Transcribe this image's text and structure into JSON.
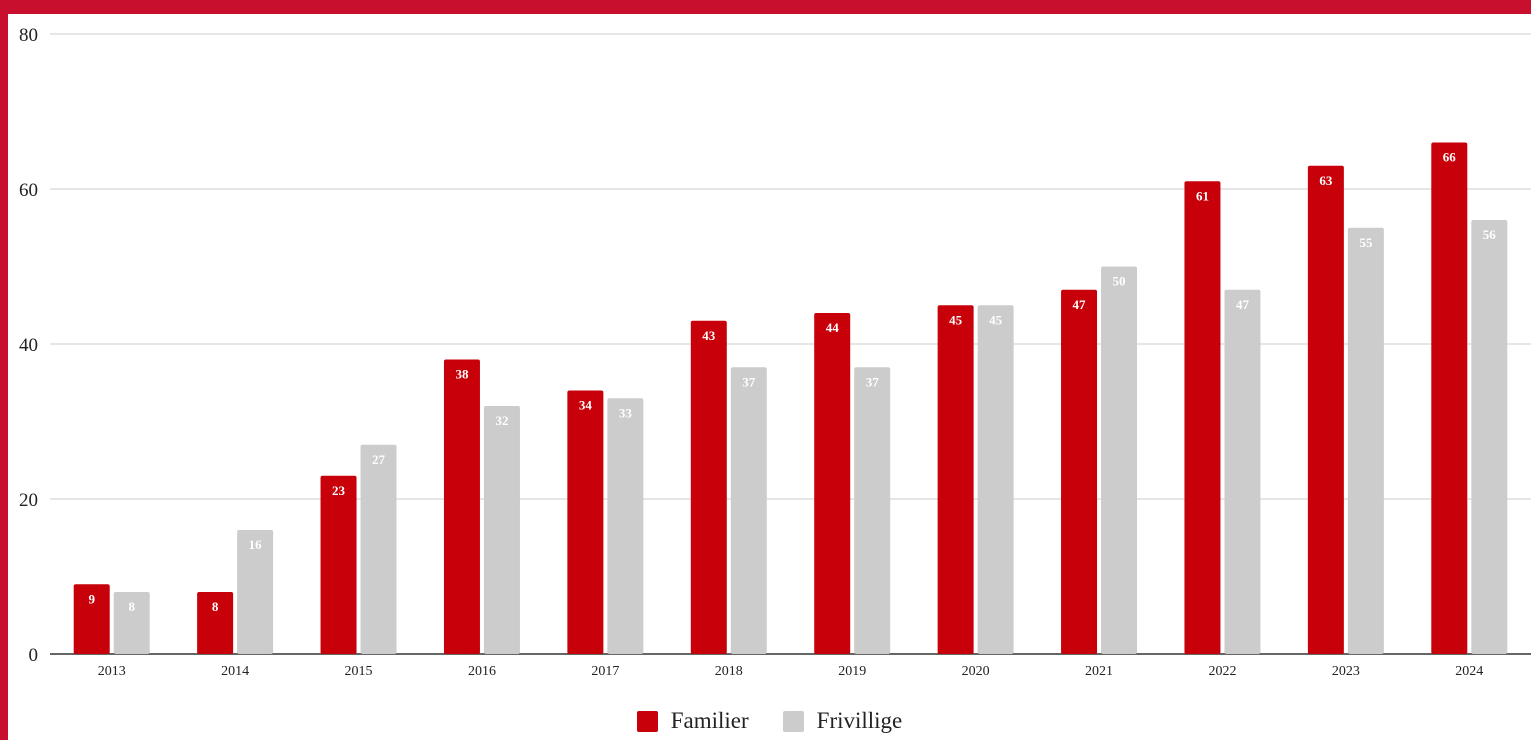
{
  "chart_data": {
    "type": "bar",
    "categories": [
      "2013",
      "2014",
      "2015",
      "2016",
      "2017",
      "2018",
      "2019",
      "2020",
      "2021",
      "2022",
      "2023",
      "2024"
    ],
    "series": [
      {
        "name": "Familier",
        "color": "#c8000a",
        "label_color": "#ffffff",
        "values": [
          9,
          8,
          23,
          38,
          34,
          43,
          44,
          45,
          47,
          61,
          63,
          66
        ]
      },
      {
        "name": "Frivillige",
        "color": "#cccccc",
        "label_color": "#ffffff",
        "values": [
          8,
          16,
          27,
          32,
          33,
          37,
          37,
          45,
          50,
          47,
          55,
          56
        ]
      }
    ],
    "ylim": [
      0,
      80
    ],
    "yticks": [
      0,
      20,
      40,
      60,
      80
    ],
    "grid": true,
    "legend_position": "bottom-center",
    "data_labels": "inside-top"
  },
  "colors": {
    "frame": "#c8102e",
    "background": "#ffffff",
    "gridline": "#cccccc",
    "axis": "#333333"
  }
}
